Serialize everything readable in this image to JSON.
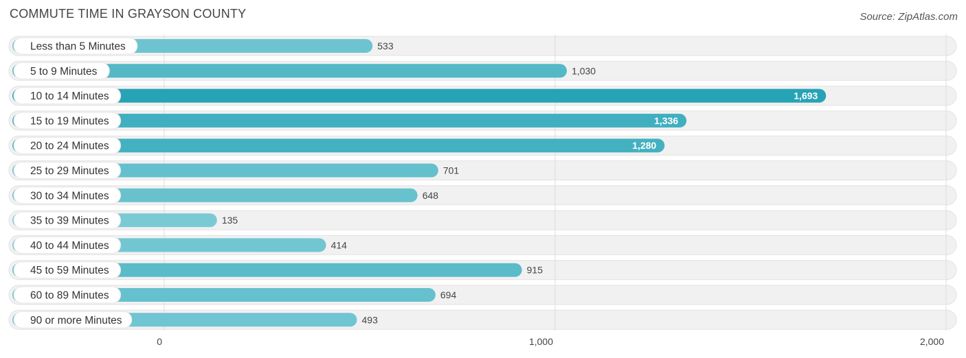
{
  "header": {
    "title": "COMMUTE TIME IN GRAYSON COUNTY",
    "source": "Source: ZipAtlas.com"
  },
  "chart_data": {
    "type": "bar",
    "orientation": "horizontal",
    "title": "COMMUTE TIME IN GRAYSON COUNTY",
    "categories": [
      "Less than 5 Minutes",
      "5 to 9 Minutes",
      "10 to 14 Minutes",
      "15 to 19 Minutes",
      "20 to 24 Minutes",
      "25 to 29 Minutes",
      "30 to 34 Minutes",
      "35 to 39 Minutes",
      "40 to 44 Minutes",
      "45 to 59 Minutes",
      "60 to 89 Minutes",
      "90 or more Minutes"
    ],
    "values": [
      533,
      1030,
      1693,
      1336,
      1280,
      701,
      648,
      135,
      414,
      915,
      694,
      493
    ],
    "value_labels": [
      "533",
      "1,030",
      "1,693",
      "1,336",
      "1,280",
      "701",
      "648",
      "135",
      "414",
      "915",
      "694",
      "493"
    ],
    "xlim": [
      0,
      2000
    ],
    "xticks": [
      0,
      1000,
      2000
    ],
    "xtick_labels": [
      "0",
      "1,000",
      "2,000"
    ],
    "grid": true,
    "colors": {
      "bar_light": "#7ccbd6",
      "bar_dark": "#27a3b6",
      "track": "#f0f0f0"
    }
  }
}
